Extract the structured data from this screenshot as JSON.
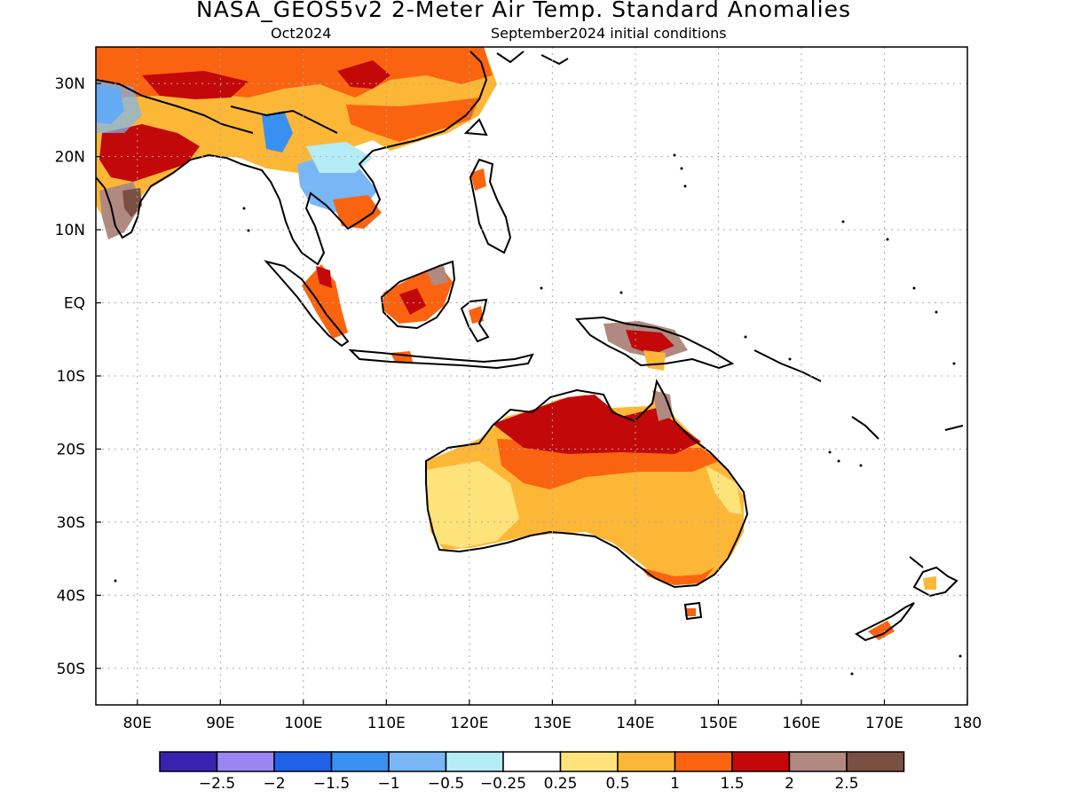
{
  "title": "NASA_GEOS5v2 2-Meter Air Temp. Standard Anomalies",
  "subtitle_left": "Oct2024",
  "subtitle_right": "September2024 initial conditions",
  "map": {
    "lon_ticks": [
      "80E",
      "90E",
      "100E",
      "110E",
      "120E",
      "130E",
      "140E",
      "150E",
      "160E",
      "170E",
      "180"
    ],
    "lat_ticks": [
      "30N",
      "20N",
      "10N",
      "EQ",
      "10S",
      "20S",
      "30S",
      "40S",
      "50S"
    ],
    "grid": true,
    "lon_range": [
      75,
      180
    ],
    "lat_range": [
      -55,
      35
    ]
  },
  "colorbar": {
    "colors": [
      "#3a22b0",
      "#9a85f5",
      "#1f62e8",
      "#3a90f0",
      "#78b6f5",
      "#b4ecf8",
      "#ffffff",
      "#fde37a",
      "#fdb737",
      "#fa6310",
      "#c20808",
      "#b08a80",
      "#7a5044"
    ],
    "labels": [
      "−2.5",
      "−2",
      "−1.5",
      "−1",
      "−0.5",
      "−0.25",
      "0.25",
      "0.5",
      "1",
      "1.5",
      "2",
      "2.5"
    ]
  }
}
